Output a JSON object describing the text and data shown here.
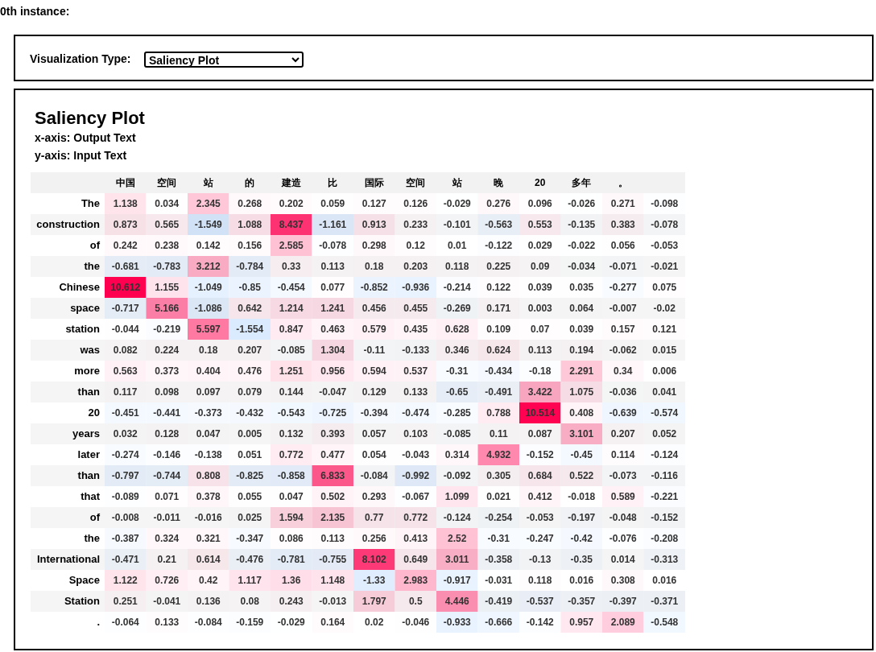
{
  "chart_data": {
    "type": "heatmap",
    "title": "Saliency Plot",
    "annotations": [
      "0th instance:",
      "Visualization Type:",
      "Saliency Plot",
      "x-axis: Output Text",
      "y-axis: Input Text"
    ],
    "data_labels": true,
    "categories": [
      "中国",
      "空间",
      "站",
      "的",
      "建造",
      "比",
      "国际",
      "空间",
      "站",
      "晚",
      "20",
      "多年",
      "。",
      null
    ],
    "y_categories": [
      "The",
      "construction",
      "of",
      "the",
      "Chinese",
      "space",
      "station",
      "was",
      "more",
      "than",
      "20",
      "years",
      "later",
      "than",
      "that",
      "of",
      "the",
      "International",
      "Space",
      "Station",
      "."
    ],
    "cells": [
      [
        1.138,
        0.034,
        2.345,
        0.268,
        0.202,
        0.059,
        0.127,
        0.126,
        -0.029,
        0.276,
        0.096,
        -0.026,
        0.271,
        -0.098
      ],
      [
        0.873,
        0.565,
        -1.549,
        1.088,
        8.437,
        -1.161,
        0.913,
        0.233,
        -0.101,
        -0.563,
        0.553,
        -0.135,
        0.383,
        -0.078
      ],
      [
        0.242,
        0.238,
        0.142,
        0.156,
        2.585,
        -0.078,
        0.298,
        0.12,
        0.01,
        -0.122,
        0.029,
        -0.022,
        0.056,
        -0.053
      ],
      [
        -0.681,
        -0.783,
        3.212,
        -0.784,
        0.33,
        0.113,
        0.18,
        0.203,
        0.118,
        0.225,
        0.09,
        -0.034,
        -0.071,
        -0.021
      ],
      [
        10.612,
        1.155,
        -1.049,
        -0.85,
        -0.454,
        0.077,
        -0.852,
        -0.936,
        -0.214,
        0.122,
        0.039,
        0.035,
        -0.277,
        0.075
      ],
      [
        -0.717,
        5.166,
        -1.086,
        0.642,
        1.214,
        1.241,
        0.456,
        0.455,
        -0.269,
        0.171,
        0.003,
        0.064,
        -0.007,
        -0.02
      ],
      [
        -0.044,
        -0.219,
        5.597,
        -1.554,
        0.847,
        0.463,
        0.579,
        0.435,
        0.628,
        0.109,
        0.07,
        0.039,
        0.157,
        0.121
      ],
      [
        0.082,
        0.224,
        0.18,
        0.207,
        -0.085,
        1.304,
        -0.11,
        -0.133,
        0.346,
        0.624,
        0.113,
        0.194,
        -0.062,
        0.015
      ],
      [
        0.563,
        0.373,
        0.404,
        0.476,
        1.251,
        0.956,
        0.594,
        0.537,
        -0.31,
        -0.434,
        -0.18,
        2.291,
        0.34,
        0.006
      ],
      [
        0.117,
        0.098,
        0.097,
        0.079,
        0.144,
        -0.047,
        0.129,
        0.133,
        -0.65,
        -0.491,
        3.422,
        1.075,
        -0.036,
        0.041
      ],
      [
        -0.451,
        -0.441,
        -0.373,
        -0.432,
        -0.543,
        -0.725,
        -0.394,
        -0.474,
        -0.285,
        0.788,
        10.514,
        0.408,
        -0.639,
        -0.574
      ],
      [
        0.032,
        0.128,
        0.047,
        0.005,
        0.132,
        0.393,
        0.057,
        0.103,
        -0.085,
        0.11,
        0.087,
        3.101,
        0.207,
        0.052
      ],
      [
        -0.274,
        -0.146,
        -0.138,
        0.051,
        0.772,
        0.477,
        0.054,
        -0.043,
        0.314,
        4.932,
        -0.152,
        -0.45,
        0.114,
        -0.124
      ],
      [
        -0.797,
        -0.744,
        0.808,
        -0.825,
        -0.858,
        6.833,
        -0.084,
        -0.992,
        -0.092,
        0.305,
        0.684,
        0.522,
        -0.073,
        -0.116
      ],
      [
        -0.089,
        0.071,
        0.378,
        0.055,
        0.047,
        0.502,
        0.293,
        -0.067,
        1.099,
        0.021,
        0.412,
        -0.018,
        0.589,
        -0.221
      ],
      [
        -0.008,
        -0.011,
        -0.016,
        0.025,
        1.594,
        2.135,
        0.77,
        0.772,
        -0.124,
        -0.254,
        -0.053,
        -0.197,
        -0.048,
        -0.152
      ],
      [
        -0.387,
        0.324,
        0.321,
        -0.347,
        0.086,
        0.113,
        0.256,
        0.413,
        2.52,
        -0.31,
        -0.247,
        -0.42,
        -0.076,
        -0.208
      ],
      [
        -0.471,
        0.21,
        0.614,
        -0.476,
        -0.781,
        -0.755,
        8.102,
        0.649,
        3.011,
        -0.358,
        -0.13,
        -0.35,
        0.014,
        -0.313
      ],
      [
        1.122,
        0.726,
        0.42,
        1.117,
        1.36,
        1.148,
        -1.33,
        2.983,
        -0.917,
        -0.031,
        0.118,
        0.016,
        0.308,
        0.016
      ],
      [
        0.251,
        -0.041,
        0.136,
        0.08,
        0.243,
        -0.013,
        1.797,
        0.5,
        4.446,
        -0.419,
        -0.537,
        -0.357,
        -0.397,
        -0.371
      ],
      [
        -0.064,
        0.133,
        -0.084,
        -0.159,
        -0.029,
        0.164,
        0.02,
        -0.046,
        -0.933,
        -0.666,
        -0.142,
        0.957,
        2.089,
        -0.548
      ]
    ]
  }
}
